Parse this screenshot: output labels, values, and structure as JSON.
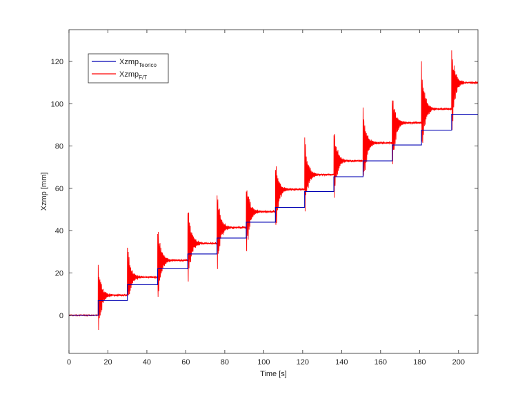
{
  "chart_data": {
    "type": "line",
    "title": "",
    "xlabel": "Time [s]",
    "ylabel": "Xzmp [mm]",
    "xlim": [
      0,
      210
    ],
    "ylim": [
      -18,
      135
    ],
    "xticks": [
      0,
      20,
      40,
      60,
      80,
      100,
      120,
      140,
      160,
      180,
      200
    ],
    "yticks": [
      0,
      20,
      40,
      60,
      80,
      100,
      120
    ],
    "grid": false,
    "legend_position": "top-left",
    "series": [
      {
        "name": "Xzmp",
        "name_subscript": "Teorico",
        "color": "#0000b3",
        "style": "step",
        "step_times": [
          0,
          15,
          30,
          45.5,
          61,
          76,
          91,
          106,
          121,
          136,
          151,
          166,
          181,
          196.5,
          210
        ],
        "step_levels": [
          0,
          7,
          14.5,
          22,
          29,
          36.5,
          44,
          51,
          58.5,
          65.5,
          73,
          80.5,
          87.5,
          95
        ]
      },
      {
        "name": "Xzmp",
        "name_subscript": "F/T",
        "color": "#ff0000",
        "style": "oscillating",
        "initial_value": 0,
        "step_times": [
          15,
          30,
          45.5,
          61,
          76,
          91,
          106,
          121,
          136,
          151,
          166,
          181,
          196.5
        ],
        "settled_levels": [
          9.5,
          18,
          26,
          34,
          41.5,
          49,
          59.5,
          66.5,
          73,
          81.5,
          91,
          97.5,
          110
        ],
        "transient_peaks": [
          26,
          35,
          47,
          58,
          63,
          66,
          75,
          86,
          92,
          100,
          107,
          123,
          129
        ],
        "transient_troughs": [
          -13,
          0,
          -1,
          9,
          17,
          23,
          34,
          45,
          50,
          52,
          63,
          72,
          82
        ]
      }
    ]
  }
}
